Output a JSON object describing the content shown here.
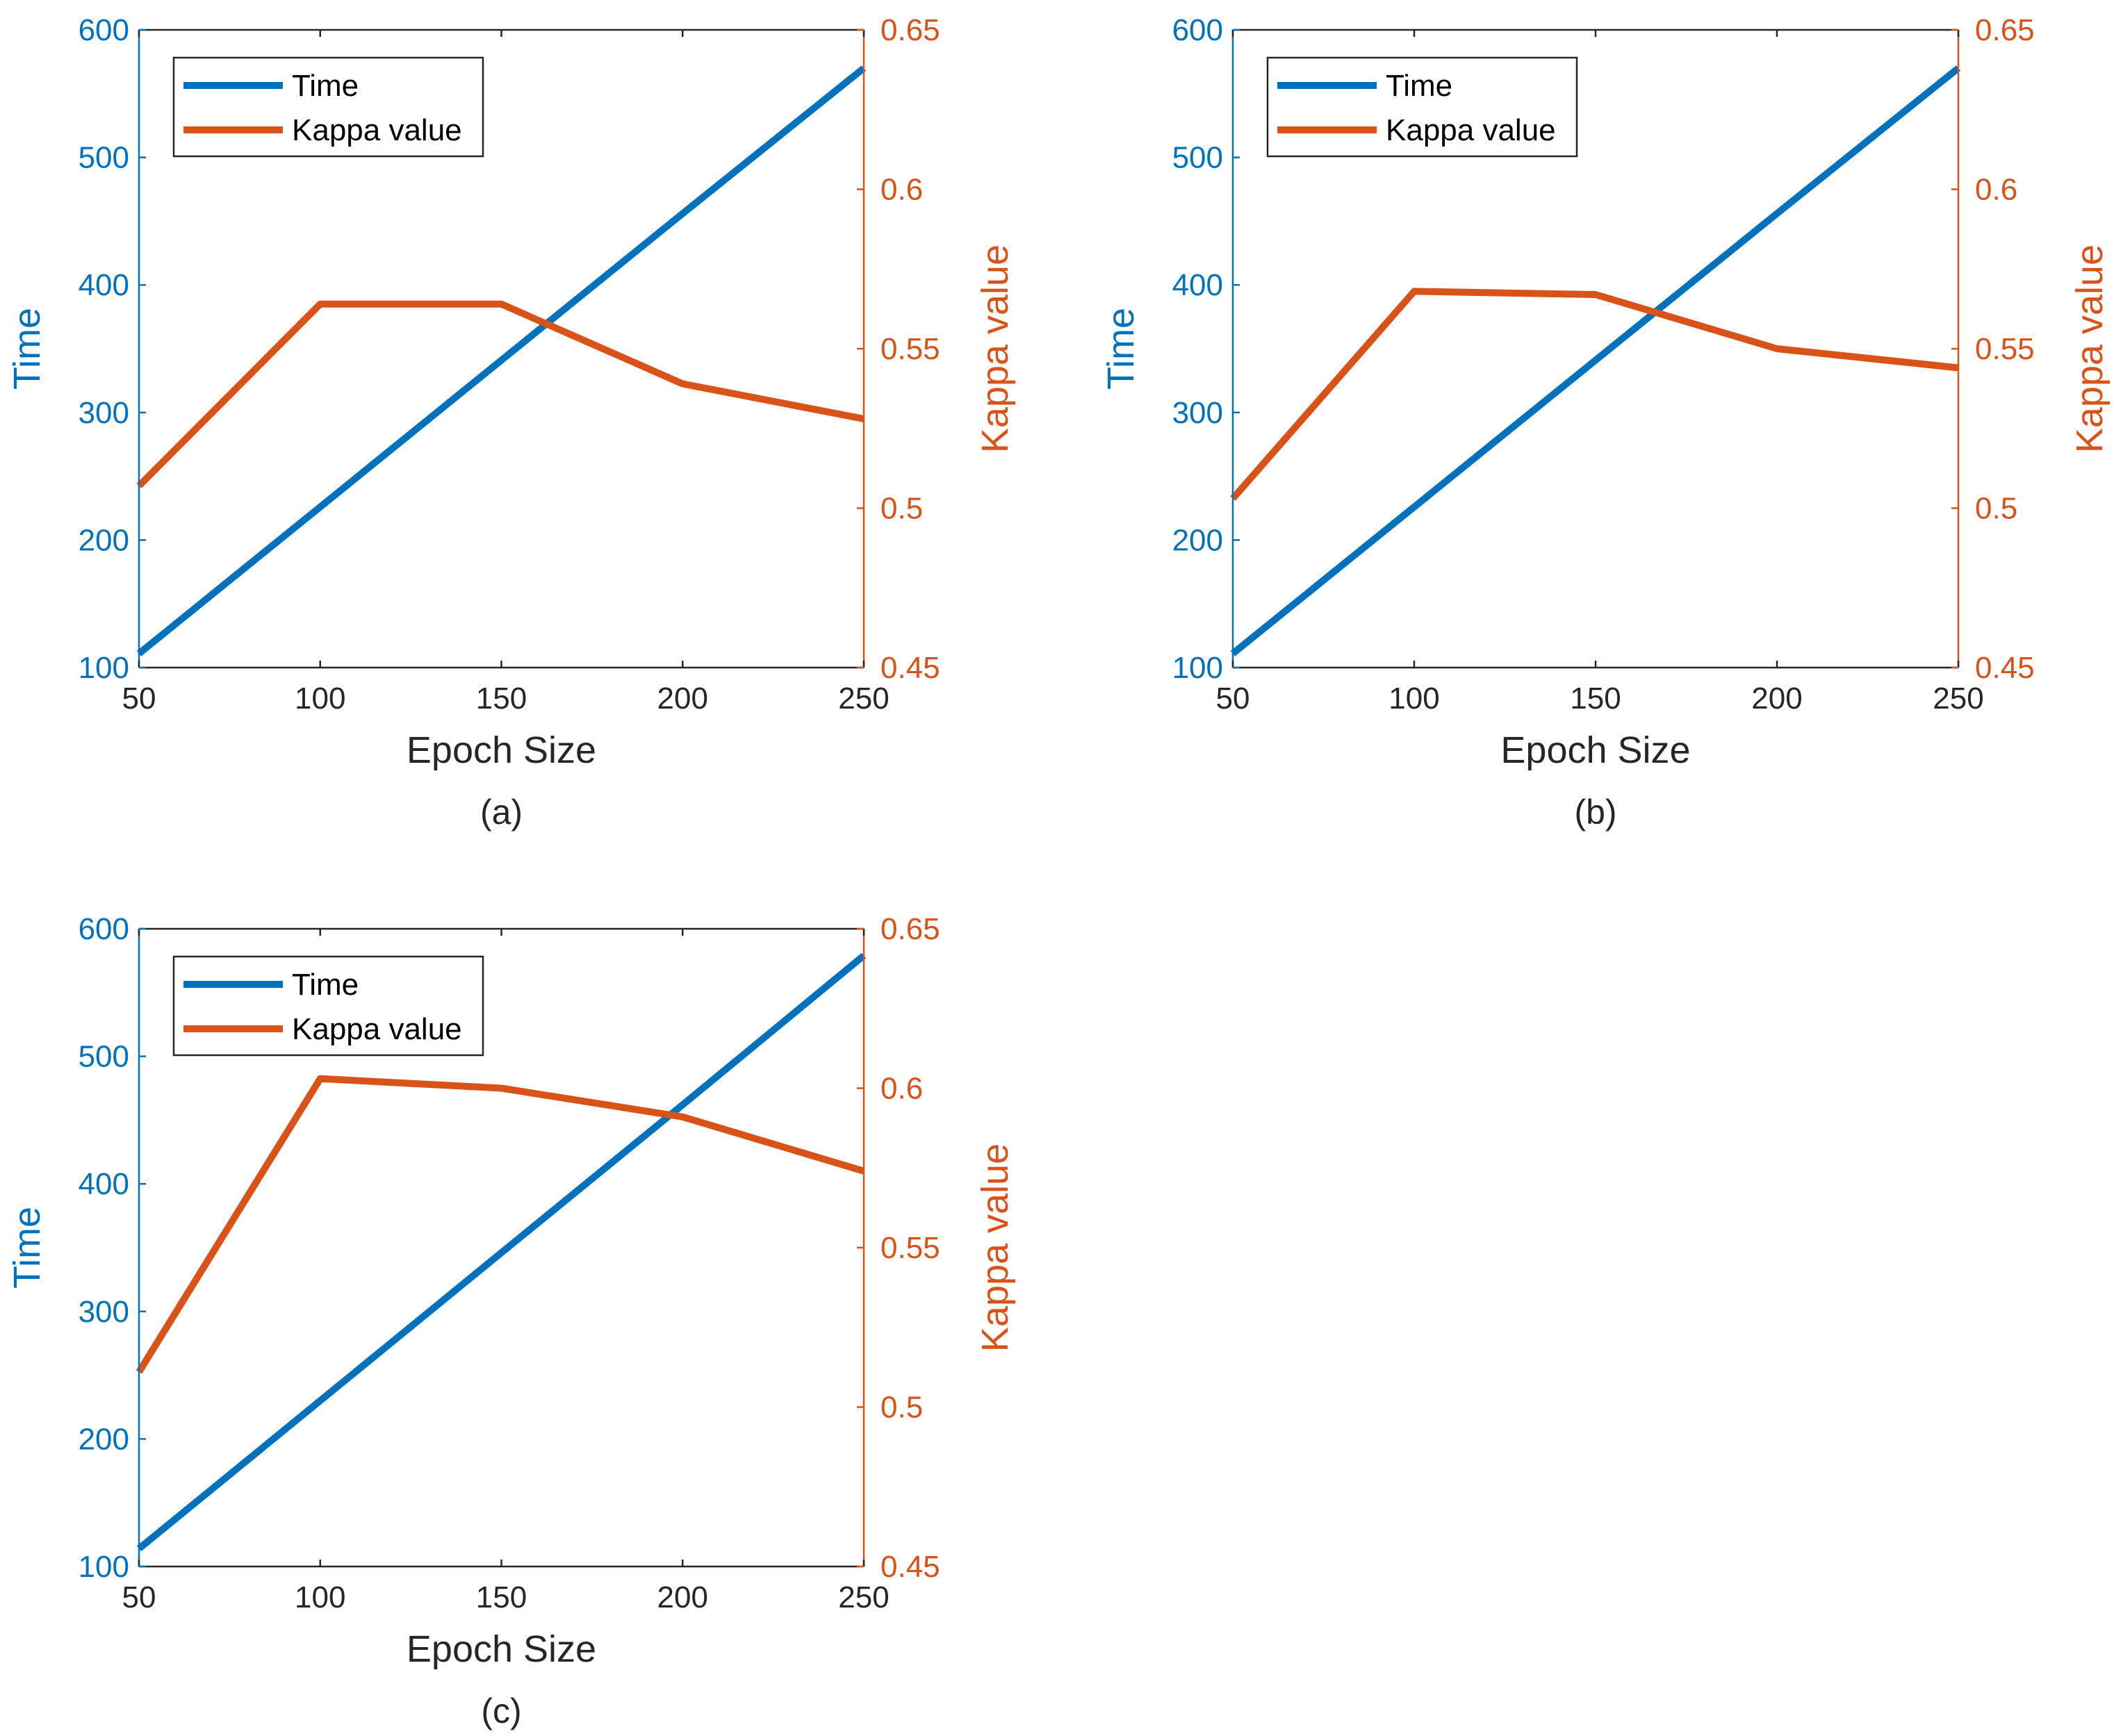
{
  "chart_data": [
    {
      "type": "line",
      "panel_label": "(a)",
      "xlabel": "Epoch Size",
      "ylabel_left": "Time",
      "ylabel_right": "Kappa value",
      "x": [
        50,
        100,
        150,
        200,
        250
      ],
      "xlim": [
        50,
        250
      ],
      "x_ticks": [
        "50",
        "100",
        "150",
        "200",
        "250"
      ],
      "ylim_left": [
        100,
        600
      ],
      "y_ticks_left": [
        "100",
        "200",
        "300",
        "400",
        "500",
        "600"
      ],
      "ylim_right": [
        0.45,
        0.65
      ],
      "y_ticks_right": [
        "0.45",
        "0.5",
        "0.55",
        "0.6",
        "0.65"
      ],
      "legend": {
        "position": "top-left",
        "entries": [
          "Time",
          "Kappa value"
        ]
      },
      "series": [
        {
          "name": "Time",
          "axis": "left",
          "color": "#0072BD",
          "values": [
            111,
            226,
            341,
            456,
            570
          ]
        },
        {
          "name": "Kappa value",
          "axis": "right",
          "color": "#D95319",
          "values": [
            0.507,
            0.564,
            0.564,
            0.539,
            0.528
          ]
        }
      ]
    },
    {
      "type": "line",
      "panel_label": "(b)",
      "xlabel": "Epoch Size",
      "ylabel_left": "Time",
      "ylabel_right": "Kappa value",
      "x": [
        50,
        100,
        150,
        200,
        250
      ],
      "xlim": [
        50,
        250
      ],
      "x_ticks": [
        "50",
        "100",
        "150",
        "200",
        "250"
      ],
      "ylim_left": [
        100,
        600
      ],
      "y_ticks_left": [
        "100",
        "200",
        "300",
        "400",
        "500",
        "600"
      ],
      "ylim_right": [
        0.45,
        0.65
      ],
      "y_ticks_right": [
        "0.45",
        "0.5",
        "0.55",
        "0.6",
        "0.65"
      ],
      "legend": {
        "position": "top-left",
        "entries": [
          "Time",
          "Kappa value"
        ]
      },
      "series": [
        {
          "name": "Time",
          "axis": "left",
          "color": "#0072BD",
          "values": [
            111,
            226,
            341,
            456,
            570
          ]
        },
        {
          "name": "Kappa value",
          "axis": "right",
          "color": "#D95319",
          "values": [
            0.503,
            0.568,
            0.567,
            0.55,
            0.544
          ]
        }
      ]
    },
    {
      "type": "line",
      "panel_label": "(c)",
      "xlabel": "Epoch Size",
      "ylabel_left": "Time",
      "ylabel_right": "Kappa value",
      "x": [
        50,
        100,
        150,
        200,
        250
      ],
      "xlim": [
        50,
        250
      ],
      "x_ticks": [
        "50",
        "100",
        "150",
        "200",
        "250"
      ],
      "ylim_left": [
        100,
        600
      ],
      "y_ticks_left": [
        "100",
        "200",
        "300",
        "400",
        "500",
        "600"
      ],
      "ylim_right": [
        0.45,
        0.65
      ],
      "y_ticks_right": [
        "0.45",
        "0.5",
        "0.55",
        "0.6",
        "0.65"
      ],
      "legend": {
        "position": "top-left",
        "entries": [
          "Time",
          "Kappa value"
        ]
      },
      "series": [
        {
          "name": "Time",
          "axis": "left",
          "color": "#0072BD",
          "values": [
            114,
            230,
            346,
            462,
            579
          ]
        },
        {
          "name": "Kappa value",
          "axis": "right",
          "color": "#D95319",
          "values": [
            0.511,
            0.603,
            0.6,
            0.591,
            0.574
          ]
        }
      ]
    }
  ]
}
